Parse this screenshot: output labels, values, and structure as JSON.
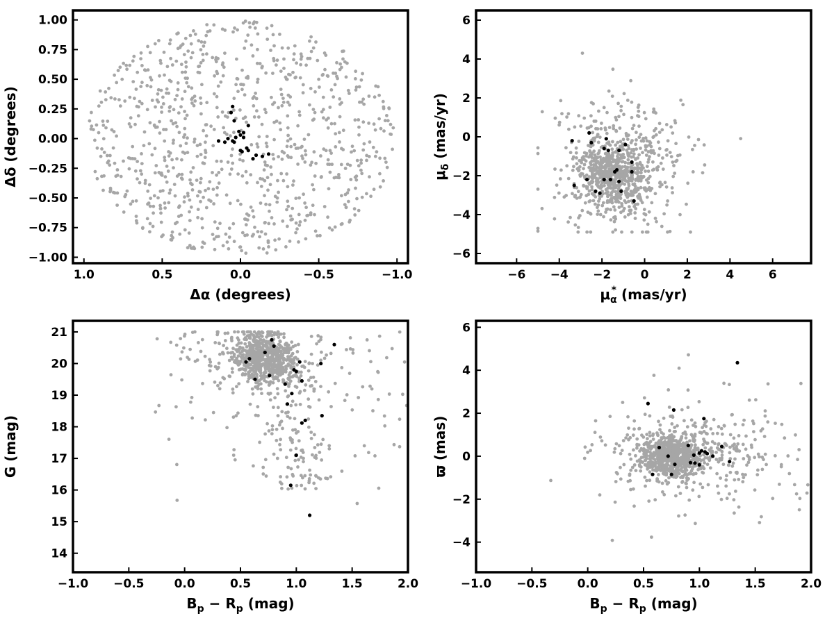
{
  "figure": {
    "background": "#ffffff",
    "field_color": "#a6a6a6",
    "member_color": "#000000"
  },
  "chart_data": [
    {
      "id": "sky-positions",
      "type": "scatter",
      "title": "",
      "xlabel": "Δα (degrees)",
      "ylabel": "Δδ (degrees)",
      "xlim": [
        1.07,
        -1.07
      ],
      "ylim": [
        -1.05,
        1.08
      ],
      "xinverted": true,
      "xticks": [
        1.0,
        0.5,
        0.0,
        -0.5,
        -1.0
      ],
      "xtick_labels": [
        "1.0",
        "0.5",
        "0.0",
        "−0.5",
        "−1.0"
      ],
      "yticks": [
        -1.0,
        -0.75,
        -0.5,
        -0.25,
        0.0,
        0.25,
        0.5,
        0.75,
        1.0
      ],
      "ytick_labels": [
        "−1.00",
        "−0.75",
        "−0.50",
        "−0.25",
        "0.00",
        "0.25",
        "0.50",
        "0.75",
        "1.00"
      ],
      "grid": false,
      "legend": "none",
      "series": [
        {
          "role": "field",
          "color": "#a6a6a6",
          "distribution": "uniform disk of radius 1.0 deg",
          "approx_count": 900
        },
        {
          "role": "members",
          "color": "#000000",
          "points": [
            [
              0.05,
              0.27
            ],
            [
              0.06,
              0.22
            ],
            [
              0.04,
              0.15
            ],
            [
              0.01,
              0.06
            ],
            [
              0.0,
              0.03
            ],
            [
              -0.02,
              0.05
            ],
            [
              0.08,
              0.0
            ],
            [
              0.05,
              -0.02
            ],
            [
              0.04,
              -0.03
            ],
            [
              0.03,
              0.01
            ],
            [
              -0.02,
              0.01
            ],
            [
              0.1,
              -0.03
            ],
            [
              0.14,
              -0.02
            ],
            [
              -0.04,
              -0.08
            ],
            [
              -0.01,
              -0.11
            ],
            [
              -0.05,
              -0.1
            ],
            [
              -0.08,
              -0.17
            ],
            [
              -0.1,
              -0.14
            ],
            [
              -0.14,
              -0.15
            ],
            [
              -0.18,
              -0.13
            ],
            [
              -0.05,
              0.11
            ],
            [
              0.0,
              -0.1
            ]
          ]
        }
      ]
    },
    {
      "id": "proper-motions",
      "type": "scatter",
      "title": "",
      "xlabel": "μα* (mas/yr)",
      "xlabel_main": "μ",
      "xlabel_sub": "α",
      "xlabel_sup": "*",
      "xlabel_unit": " (mas/yr)",
      "ylabel": "μδ (mas/yr)",
      "ylabel_main": "μ",
      "ylabel_sub": "δ",
      "ylabel_unit": " (mas/yr)",
      "xlim": [
        -7.9,
        7.8
      ],
      "ylim": [
        -6.5,
        6.5
      ],
      "xticks": [
        -6,
        -4,
        -2,
        0,
        2,
        4,
        6
      ],
      "xtick_labels": [
        "−6",
        "−4",
        "−2",
        "0",
        "2",
        "4",
        "6"
      ],
      "yticks": [
        -6,
        -4,
        -2,
        0,
        2,
        4,
        6
      ],
      "ytick_labels": [
        "−6",
        "−4",
        "−2",
        "0",
        "2",
        "4",
        "6"
      ],
      "grid": false,
      "legend": "none",
      "series": [
        {
          "role": "field",
          "color": "#a6a6a6",
          "distribution": "spread over x −5.0..4.5, y −5.0..4.5, concentrated near (−1.5, −2.0)",
          "approx_count": 900
        },
        {
          "role": "members",
          "color": "#000000",
          "points": [
            [
              -2.6,
              0.2
            ],
            [
              -2.5,
              -0.3
            ],
            [
              -1.8,
              -0.1
            ],
            [
              -1.7,
              -0.7
            ],
            [
              -1.2,
              -0.7
            ],
            [
              -0.9,
              -0.4
            ],
            [
              -1.9,
              -0.6
            ],
            [
              -0.6,
              -1.3
            ],
            [
              -1.4,
              -1.8
            ],
            [
              -1.3,
              -1.7
            ],
            [
              -0.6,
              -1.8
            ],
            [
              -3.4,
              -0.2
            ],
            [
              -3.3,
              -2.5
            ],
            [
              -2.7,
              -2.2
            ],
            [
              -2.3,
              -2.8
            ],
            [
              -2.1,
              -2.9
            ],
            [
              -1.6,
              -2.2
            ],
            [
              -1.9,
              -2.2
            ],
            [
              -1.2,
              -2.3
            ],
            [
              -1.1,
              -2.8
            ],
            [
              -0.5,
              -3.3
            ]
          ]
        }
      ]
    },
    {
      "id": "cmd",
      "type": "scatter",
      "title": "",
      "xlabel": "Bp − Rp (mag)",
      "xlabel_b": "B",
      "xlabel_b_sub": "p",
      "xlabel_minus": " − ",
      "xlabel_r": "R",
      "xlabel_r_sub": "p",
      "xlabel_unit": " (mag)",
      "ylabel": "G (mag)",
      "xlim": [
        -1.0,
        2.0
      ],
      "ylim": [
        13.4,
        21.35
      ],
      "xticks": [
        -1.0,
        -0.5,
        0.0,
        0.5,
        1.0,
        1.5,
        2.0
      ],
      "xtick_labels": [
        "−1.0",
        "−0.5",
        "0.0",
        "0.5",
        "1.0",
        "1.5",
        "2.0"
      ],
      "yticks": [
        14,
        15,
        16,
        17,
        18,
        19,
        20,
        21
      ],
      "ytick_labels": [
        "14",
        "15",
        "16",
        "17",
        "18",
        "19",
        "20",
        "21"
      ],
      "grid": false,
      "legend": "none",
      "series": [
        {
          "role": "field",
          "color": "#a6a6a6",
          "distribution": "dense clump near (0.72, 20.1); tail down to G≈15 near color 1.0; faint spread to color 2.0",
          "approx_count": 1000
        },
        {
          "role": "members",
          "color": "#000000",
          "points": [
            [
              0.78,
              20.75
            ],
            [
              0.8,
              20.55
            ],
            [
              1.34,
              20.6
            ],
            [
              0.55,
              20.05
            ],
            [
              0.58,
              20.15
            ],
            [
              0.72,
              20.35
            ],
            [
              1.03,
              20.05
            ],
            [
              1.22,
              20.0
            ],
            [
              0.98,
              19.8
            ],
            [
              1.0,
              19.75
            ],
            [
              0.63,
              19.5
            ],
            [
              0.76,
              19.62
            ],
            [
              1.05,
              19.45
            ],
            [
              0.9,
              19.35
            ],
            [
              0.96,
              19.05
            ],
            [
              0.92,
              18.72
            ],
            [
              1.23,
              18.35
            ],
            [
              1.08,
              18.2
            ],
            [
              1.05,
              18.12
            ],
            [
              1.0,
              17.1
            ],
            [
              0.95,
              16.15
            ],
            [
              1.12,
              15.2
            ]
          ]
        }
      ]
    },
    {
      "id": "parallax",
      "type": "scatter",
      "title": "",
      "xlabel": "Bp − Rp (mag)",
      "xlabel_b": "B",
      "xlabel_b_sub": "p",
      "xlabel_minus": " − ",
      "xlabel_r": "R",
      "xlabel_r_sub": "p",
      "xlabel_unit": " (mag)",
      "ylabel": "ϖ (mas)",
      "xlim": [
        -1.0,
        2.0
      ],
      "ylim": [
        -5.4,
        6.3
      ],
      "xticks": [
        -1.0,
        -0.5,
        0.0,
        0.5,
        1.0,
        1.5,
        2.0
      ],
      "xtick_labels": [
        "−1.0",
        "−0.5",
        "0.0",
        "0.5",
        "1.0",
        "1.5",
        "2.0"
      ],
      "yticks": [
        -4,
        -2,
        0,
        2,
        4,
        6
      ],
      "ytick_labels": [
        "−4",
        "−2",
        "0",
        "2",
        "4",
        "6"
      ],
      "grid": false,
      "legend": "none",
      "series": [
        {
          "role": "field",
          "color": "#a6a6a6",
          "distribution": "dense clump near (0.75, 0.0); spread −3..3 in parallax, colors 0.0..2.0",
          "approx_count": 1000
        },
        {
          "role": "members",
          "color": "#000000",
          "points": [
            [
              1.34,
              4.35
            ],
            [
              0.54,
              2.45
            ],
            [
              0.77,
              2.15
            ],
            [
              1.04,
              1.75
            ],
            [
              0.64,
              0.4
            ],
            [
              1.2,
              0.45
            ],
            [
              0.9,
              0.5
            ],
            [
              1.02,
              0.25
            ],
            [
              1.05,
              0.2
            ],
            [
              1.0,
              0.15
            ],
            [
              1.07,
              0.12
            ],
            [
              1.12,
              0.0
            ],
            [
              0.72,
              0.0
            ],
            [
              0.95,
              0.05
            ],
            [
              0.78,
              -0.38
            ],
            [
              0.96,
              -0.32
            ],
            [
              0.92,
              -0.3
            ],
            [
              1.27,
              -0.25
            ],
            [
              0.58,
              -0.85
            ],
            [
              0.75,
              -0.85
            ],
            [
              1.0,
              -0.4
            ]
          ]
        }
      ]
    }
  ]
}
